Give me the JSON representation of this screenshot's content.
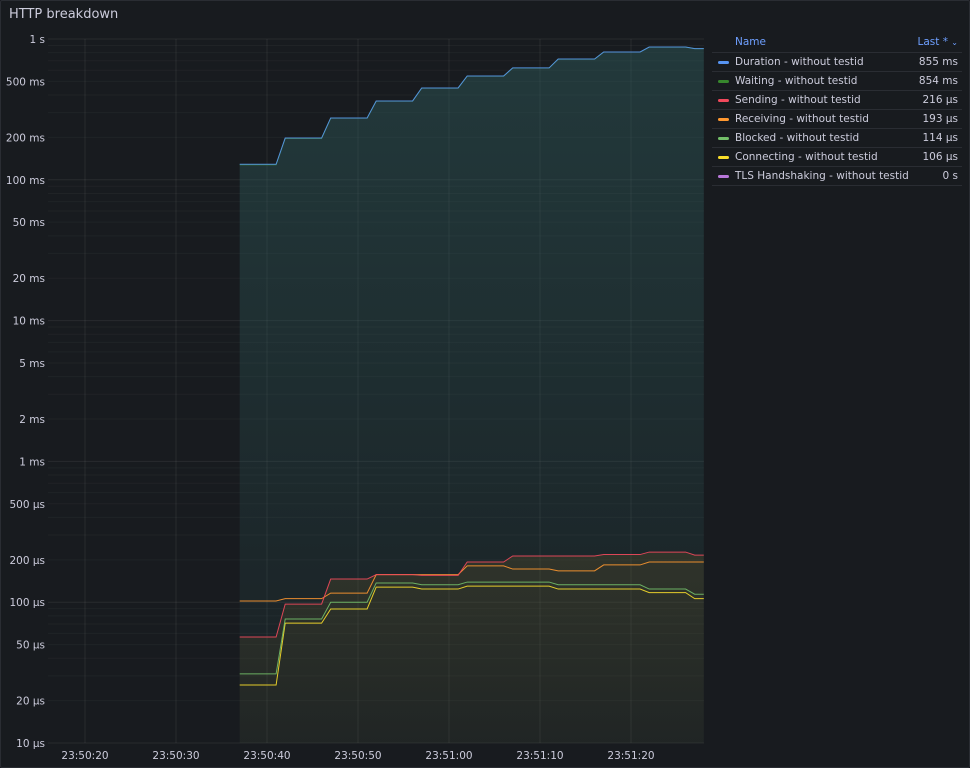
{
  "panel": {
    "title": "HTTP breakdown"
  },
  "legend": {
    "header_name": "Name",
    "header_value": "Last *",
    "sort_icon": "chevron-down-icon",
    "items": [
      {
        "name": "Duration - without testid",
        "last": "855 ms",
        "color": "#5794f2"
      },
      {
        "name": "Waiting - without testid",
        "last": "854 ms",
        "color": "#37872d"
      },
      {
        "name": "Sending - without testid",
        "last": "216 µs",
        "color": "#f2495c"
      },
      {
        "name": "Receiving - without testid",
        "last": "193 µs",
        "color": "#ff9830"
      },
      {
        "name": "Blocked - without testid",
        "last": "114 µs",
        "color": "#73bf69"
      },
      {
        "name": "Connecting - without testid",
        "last": "106 µs",
        "color": "#fade2a"
      },
      {
        "name": "TLS Handshaking - without testid",
        "last": "0 s",
        "color": "#b877d9"
      }
    ]
  },
  "chart_data": {
    "type": "line",
    "y_scale": "log10",
    "ylim_seconds": [
      1e-05,
      1
    ],
    "xlim": [
      "23:50:15",
      "23:51:28"
    ],
    "grid": true,
    "legend_placement": "right",
    "y_ticks": [
      {
        "label": "1 s",
        "value": 1
      },
      {
        "label": "500 ms",
        "value": 0.5
      },
      {
        "label": "200 ms",
        "value": 0.2
      },
      {
        "label": "100 ms",
        "value": 0.1
      },
      {
        "label": "50 ms",
        "value": 0.05
      },
      {
        "label": "20 ms",
        "value": 0.02
      },
      {
        "label": "10 ms",
        "value": 0.01
      },
      {
        "label": "5 ms",
        "value": 0.005
      },
      {
        "label": "2 ms",
        "value": 0.002
      },
      {
        "label": "1 ms",
        "value": 0.001
      },
      {
        "label": "500 µs",
        "value": 0.0005
      },
      {
        "label": "200 µs",
        "value": 0.0002
      },
      {
        "label": "100 µs",
        "value": 0.0001
      },
      {
        "label": "50 µs",
        "value": 5e-05
      },
      {
        "label": "20 µs",
        "value": 2e-05
      },
      {
        "label": "10 µs",
        "value": 1e-05
      }
    ],
    "x_ticks": [
      "23:50:20",
      "23:50:30",
      "23:50:40",
      "23:50:50",
      "23:51:00",
      "23:51:10",
      "23:51:20"
    ],
    "x": [
      "23:50:37",
      "23:50:41",
      "23:50:42",
      "23:50:46",
      "23:50:47",
      "23:50:51",
      "23:50:52",
      "23:50:56",
      "23:50:57",
      "23:51:01",
      "23:51:02",
      "23:51:06",
      "23:51:07",
      "23:51:11",
      "23:51:12",
      "23:51:16",
      "23:51:17",
      "23:51:21",
      "23:51:22",
      "23:51:26",
      "23:51:27",
      "23:51:28"
    ],
    "series": [
      {
        "name": "Duration - without testid",
        "color": "#5794f2",
        "values": [
          0.129,
          0.129,
          0.198,
          0.198,
          0.275,
          0.275,
          0.363,
          0.363,
          0.449,
          0.449,
          0.546,
          0.546,
          0.623,
          0.623,
          0.721,
          0.721,
          0.809,
          0.809,
          0.877,
          0.877,
          0.855,
          0.855
        ]
      },
      {
        "name": "Waiting - without testid",
        "color": "#37872d",
        "values": [
          0.128,
          0.128,
          0.197,
          0.197,
          0.274,
          0.274,
          0.362,
          0.362,
          0.448,
          0.448,
          0.545,
          0.545,
          0.622,
          0.622,
          0.72,
          0.72,
          0.808,
          0.808,
          0.876,
          0.876,
          0.854,
          0.854
        ]
      },
      {
        "name": "Sending - without testid",
        "color": "#f2495c",
        "values": [
          5.66e-05,
          5.66e-05,
          9.7e-05,
          9.7e-05,
          0.000146,
          0.000146,
          0.000157,
          0.000157,
          0.000155,
          0.000155,
          0.000193,
          0.000193,
          0.000213,
          0.000213,
          0.000213,
          0.000213,
          0.000218,
          0.000218,
          0.000227,
          0.000227,
          0.000216,
          0.000216
        ]
      },
      {
        "name": "Receiving - without testid",
        "color": "#ff9830",
        "values": [
          0.000102,
          0.000102,
          0.000106,
          0.000106,
          0.000116,
          0.000116,
          0.000157,
          0.000157,
          0.000157,
          0.000157,
          0.000181,
          0.000181,
          0.000172,
          0.000172,
          0.000167,
          0.000167,
          0.000184,
          0.000184,
          0.000193,
          0.000193,
          0.000193,
          0.000193
        ]
      },
      {
        "name": "Blocked - without testid",
        "color": "#73bf69",
        "values": [
          3.1e-05,
          3.1e-05,
          7.6e-05,
          7.6e-05,
          0.0001,
          0.0001,
          0.000137,
          0.000137,
          0.000133,
          0.000133,
          0.000139,
          0.000139,
          0.000139,
          0.000139,
          0.000133,
          0.000133,
          0.000133,
          0.000133,
          0.000124,
          0.000124,
          0.000114,
          0.000114
        ]
      },
      {
        "name": "Connecting - without testid",
        "color": "#fade2a",
        "values": [
          2.58e-05,
          2.58e-05,
          7.1e-05,
          7.1e-05,
          8.95e-05,
          8.95e-05,
          0.000128,
          0.000128,
          0.000124,
          0.000124,
          0.00013,
          0.00013,
          0.00013,
          0.00013,
          0.000124,
          0.000124,
          0.000124,
          0.000124,
          0.000117,
          0.000117,
          0.000106,
          0.000106
        ]
      }
    ]
  }
}
